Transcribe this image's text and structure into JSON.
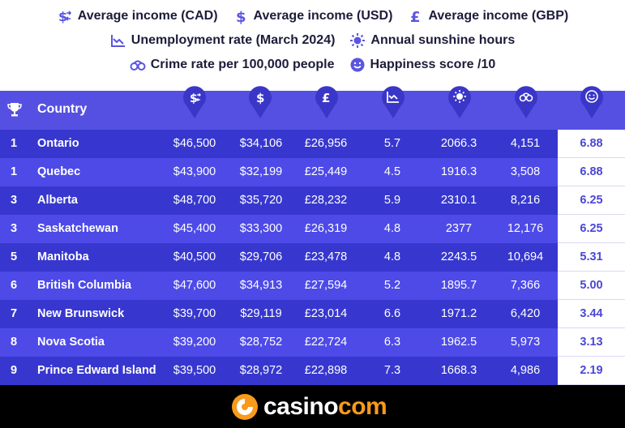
{
  "legend": {
    "cad": "Average income (CAD)",
    "usd": "Average income (USD)",
    "gbp": "Average income (GBP)",
    "unemployment": "Unemployment rate (March 2024)",
    "sunshine": "Annual sunshine hours",
    "crime": "Crime rate per 100,000 people",
    "happiness": "Happiness score /10"
  },
  "header": {
    "country": "Country"
  },
  "rows": [
    {
      "rank": "1",
      "country": "Ontario",
      "cad": "$46,500",
      "usd": "$34,106",
      "gbp": "£26,956",
      "unemp": "5.7",
      "sun": "2066.3",
      "crime": "4,151",
      "happy": "6.88"
    },
    {
      "rank": "1",
      "country": "Quebec",
      "cad": "$43,900",
      "usd": "$32,199",
      "gbp": "£25,449",
      "unemp": "4.5",
      "sun": "1916.3",
      "crime": "3,508",
      "happy": "6.88"
    },
    {
      "rank": "3",
      "country": "Alberta",
      "cad": "$48,700",
      "usd": "$35,720",
      "gbp": "£28,232",
      "unemp": "5.9",
      "sun": "2310.1",
      "crime": "8,216",
      "happy": "6.25"
    },
    {
      "rank": "3",
      "country": "Saskatchewan",
      "cad": "$45,400",
      "usd": "$33,300",
      "gbp": "£26,319",
      "unemp": "4.8",
      "sun": "2377",
      "crime": "12,176",
      "happy": "6.25"
    },
    {
      "rank": "5",
      "country": "Manitoba",
      "cad": "$40,500",
      "usd": "$29,706",
      "gbp": "£23,478",
      "unemp": "4.8",
      "sun": "2243.5",
      "crime": "10,694",
      "happy": "5.31"
    },
    {
      "rank": "6",
      "country": "British Columbia",
      "cad": "$47,600",
      "usd": "$34,913",
      "gbp": "£27,594",
      "unemp": "5.2",
      "sun": "1895.7",
      "crime": "7,366",
      "happy": "5.00"
    },
    {
      "rank": "7",
      "country": "New Brunswick",
      "cad": "$39,700",
      "usd": "$29,119",
      "gbp": "£23,014",
      "unemp": "6.6",
      "sun": "1971.2",
      "crime": "6,420",
      "happy": "3.44"
    },
    {
      "rank": "8",
      "country": "Nova Scotia",
      "cad": "$39,200",
      "usd": "$28,752",
      "gbp": "£22,724",
      "unemp": "6.3",
      "sun": "1962.5",
      "crime": "5,973",
      "happy": "3.13"
    },
    {
      "rank": "9",
      "country": "Prince Edward Island",
      "cad": "$39,500",
      "usd": "$28,972",
      "gbp": "£22,898",
      "unemp": "7.3",
      "sun": "1668.3",
      "crime": "4,986",
      "happy": "2.19"
    }
  ],
  "footer": {
    "logo_main": "casino",
    "logo_accent": "com"
  },
  "colors": {
    "header_bg": "#5650e2",
    "row_odd": "#3737cf",
    "row_even": "#4d4ae8",
    "happiness_text": "#4b47d6",
    "logo_accent": "#f89a1c"
  }
}
